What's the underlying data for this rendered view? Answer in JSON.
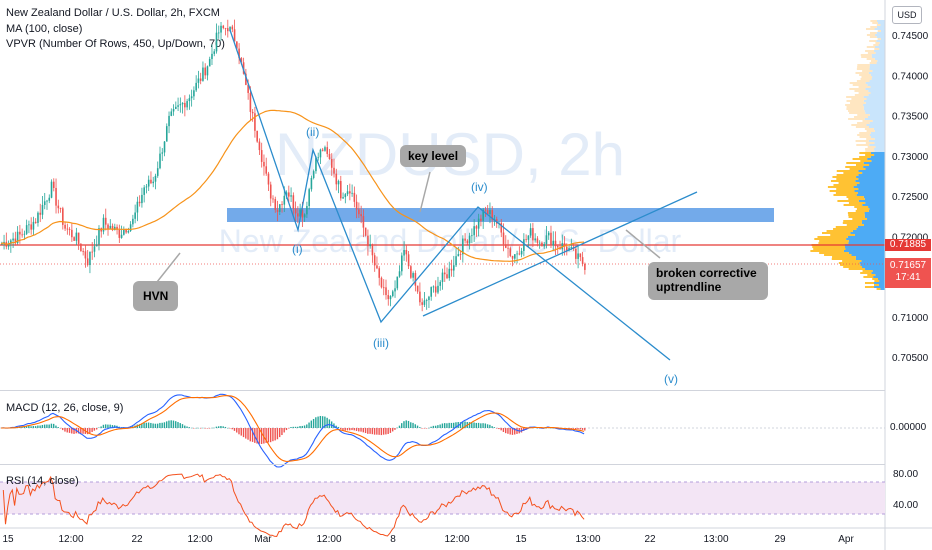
{
  "chart_data": [
    {
      "type": "candlestick",
      "title": "New Zealand Dollar / U.S. Dollar, 2h, FXCM",
      "symbol_watermark": "NZDUSD, 2h",
      "watermark_sub": "New Zealand Dollar / U.S. Dollar",
      "indicators": [
        "MA (100, close)",
        "VPVR (Number Of Rows, 450, Up/Down, 70)"
      ],
      "currency": "USD",
      "y_ticks": [
        "0.74500",
        "0.74000",
        "0.73500",
        "0.73000",
        "0.72500",
        "0.72000",
        "0.71500",
        "0.71000",
        "0.70500"
      ],
      "ylim": [
        0.7025,
        0.7475
      ],
      "x_ticks": [
        "15",
        "12:00",
        "22",
        "12:00",
        "Mar",
        "12:00",
        "8",
        "12:00",
        "15",
        "13:00",
        "22",
        "13:00",
        "29",
        "Apr"
      ],
      "price_labels": {
        "hvn_price": "0.71885",
        "last_price": "0.71657",
        "countdown": "17:41"
      },
      "annotations": {
        "key_level": "key level",
        "hvn": "HVN",
        "trendline": "broken corrective uptrendline",
        "waves": [
          "(i)",
          "(ii)",
          "(iii)",
          "(iv)",
          "(v)"
        ]
      },
      "approx_price_path": [
        [
          0,
          0.7192
        ],
        [
          8,
          0.7202
        ],
        [
          15,
          0.7222
        ],
        [
          22,
          0.7262
        ],
        [
          28,
          0.7212
        ],
        [
          33,
          0.7198
        ],
        [
          38,
          0.7171
        ],
        [
          45,
          0.7218
        ],
        [
          52,
          0.7205
        ],
        [
          58,
          0.722
        ],
        [
          63,
          0.7262
        ],
        [
          67,
          0.727
        ],
        [
          70,
          0.73
        ],
        [
          74,
          0.7345
        ],
        [
          78,
          0.736
        ],
        [
          83,
          0.7375
        ],
        [
          88,
          0.7398
        ],
        [
          92,
          0.742
        ],
        [
          96,
          0.7455
        ],
        [
          100,
          0.7462
        ],
        [
          104,
          0.7442
        ],
        [
          107,
          0.74
        ],
        [
          110,
          0.736
        ],
        [
          114,
          0.7315
        ],
        [
          118,
          0.726
        ],
        [
          122,
          0.7235
        ],
        [
          126,
          0.726
        ],
        [
          130,
          0.7235
        ],
        [
          134,
          0.723
        ],
        [
          138,
          0.729
        ],
        [
          142,
          0.731
        ],
        [
          146,
          0.729
        ],
        [
          150,
          0.7255
        ],
        [
          154,
          0.7262
        ],
        [
          158,
          0.7228
        ],
        [
          162,
          0.7195
        ],
        [
          166,
          0.7155
        ],
        [
          170,
          0.7122
        ],
        [
          174,
          0.7132
        ],
        [
          178,
          0.7182
        ],
        [
          182,
          0.7148
        ],
        [
          186,
          0.7112
        ],
        [
          190,
          0.7132
        ],
        [
          194,
          0.7145
        ],
        [
          198,
          0.7158
        ],
        [
          202,
          0.7182
        ],
        [
          206,
          0.72
        ],
        [
          210,
          0.7215
        ],
        [
          214,
          0.7232
        ],
        [
          218,
          0.7225
        ],
        [
          222,
          0.7198
        ],
        [
          226,
          0.7175
        ],
        [
          230,
          0.719
        ],
        [
          234,
          0.7205
        ],
        [
          238,
          0.7195
        ],
        [
          242,
          0.72
        ],
        [
          246,
          0.719
        ],
        [
          250,
          0.7188
        ],
        [
          254,
          0.7175
        ],
        [
          258,
          0.7166
        ]
      ]
    },
    {
      "type": "line",
      "title": "MACD (12, 26, close, 9)",
      "y_ticks": [
        "0.00000"
      ]
    },
    {
      "type": "line",
      "title": "RSI (14, close)",
      "y_ticks": [
        "80.00",
        "40.00"
      ],
      "ylim": [
        20,
        90
      ]
    }
  ],
  "colors": {
    "up": "#26a69a",
    "down": "#ef5350",
    "ma": "#f7931a",
    "hvn_line": "#e53935",
    "zone": "#5b9be6",
    "trend": "#2b8ccc",
    "macd": "#2962ff",
    "signal": "#ff6d00",
    "rsi": "#f4511e",
    "rsi_band": "#f3e5f5"
  }
}
